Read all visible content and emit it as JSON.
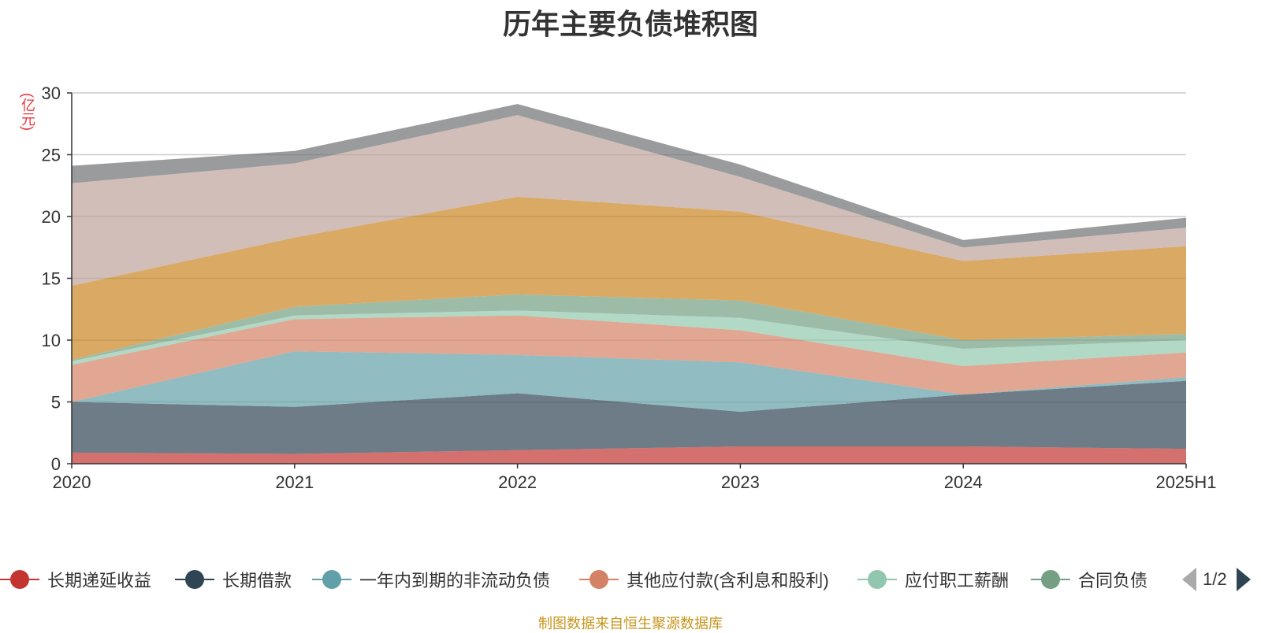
{
  "title": "历年主要负债堆积图",
  "source_text": "制图数据来自恒生聚源数据库",
  "chart_data": {
    "type": "area",
    "stacked": true,
    "title": "历年主要负债堆积图",
    "ylabel": "亿元",
    "ylim": [
      0,
      30
    ],
    "yticks": [
      0,
      5,
      10,
      15,
      20,
      25,
      30
    ],
    "categories": [
      "2020",
      "2021",
      "2022",
      "2023",
      "2024",
      "2025H1"
    ],
    "grid": true,
    "legend_position": "bottom",
    "series": [
      {
        "name": "长期递延收益",
        "color": "#c23531",
        "values": [
          0.9,
          0.8,
          1.1,
          1.4,
          1.4,
          1.2
        ]
      },
      {
        "name": "长期借款",
        "color": "#2f4554",
        "values": [
          4.1,
          3.8,
          4.6,
          2.8,
          4.2,
          5.5
        ]
      },
      {
        "name": "一年内到期的非流动负债",
        "color": "#61a0a8",
        "values": [
          0.0,
          4.5,
          3.1,
          4.0,
          0.0,
          0.3
        ]
      },
      {
        "name": "其他应付款(含利息和股利)",
        "color": "#d48265",
        "values": [
          3.0,
          2.6,
          3.2,
          2.6,
          2.3,
          2.0
        ]
      },
      {
        "name": "应付职工薪酬",
        "color": "#91c7ae",
        "values": [
          0.3,
          0.3,
          0.4,
          1.0,
          1.4,
          1.0
        ]
      },
      {
        "name": "合同负债",
        "color": "#749f83",
        "values": [
          0.1,
          0.7,
          1.3,
          1.4,
          0.7,
          0.5
        ]
      },
      {
        "name": "",
        "color": "#ca8622",
        "values": [
          6.0,
          5.6,
          7.9,
          7.2,
          6.4,
          7.1
        ]
      },
      {
        "name": "",
        "color": "#bda29a",
        "values": [
          8.3,
          6.0,
          6.6,
          2.8,
          1.1,
          1.5
        ]
      },
      {
        "name": "",
        "color": "#6e7074",
        "values": [
          1.4,
          1.0,
          0.9,
          1.0,
          0.6,
          0.8
        ]
      }
    ],
    "legend_page": "1/2"
  }
}
